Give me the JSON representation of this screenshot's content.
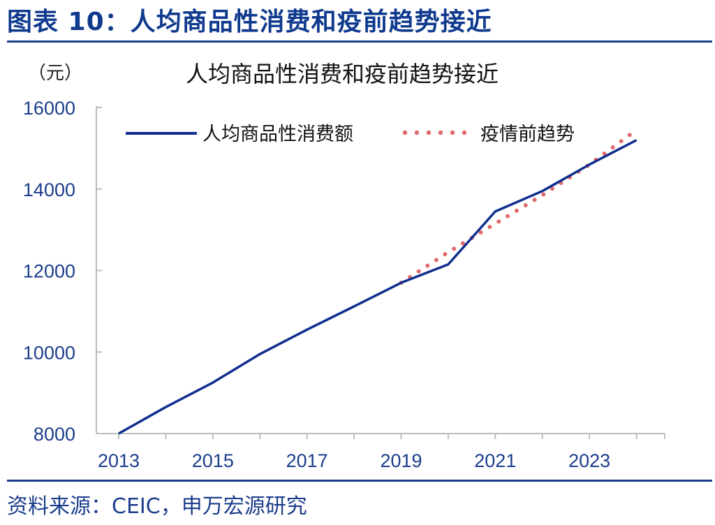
{
  "figure": {
    "title": "图表 10：人均商品性消费和疫前趋势接近",
    "source": "资料来源：CEIC，申万宏源研究"
  },
  "chart_data": {
    "type": "line",
    "title": "人均商品性消费和疫前趋势接近",
    "ylabel": "（元）",
    "xlabel": "",
    "ylim": [
      8000,
      16000
    ],
    "xlim": [
      2013,
      2024.6
    ],
    "y_ticks": [
      "8000",
      "10000",
      "12000",
      "14000",
      "16000"
    ],
    "x_ticks": [
      "2013",
      "2015",
      "2017",
      "2019",
      "2021",
      "2023"
    ],
    "legend_position": "top",
    "series": [
      {
        "name": "人均商品性消费额",
        "style": "solid",
        "color": "#0f2f8e",
        "x": [
          2013,
          2014,
          2015,
          2016,
          2017,
          2018,
          2019,
          2020,
          2021,
          2022,
          2023,
          2024
        ],
        "values": [
          8000,
          8650,
          9250,
          9950,
          10550,
          11120,
          11700,
          12150,
          13450,
          13950,
          14600,
          15200
        ]
      },
      {
        "name": "疫情前趋势",
        "style": "dotted",
        "color": "#e06a6e",
        "x": [
          2019,
          2020,
          2021,
          2022,
          2023,
          2024
        ],
        "values": [
          11700,
          12450,
          13150,
          13850,
          14600,
          15450
        ]
      }
    ]
  }
}
